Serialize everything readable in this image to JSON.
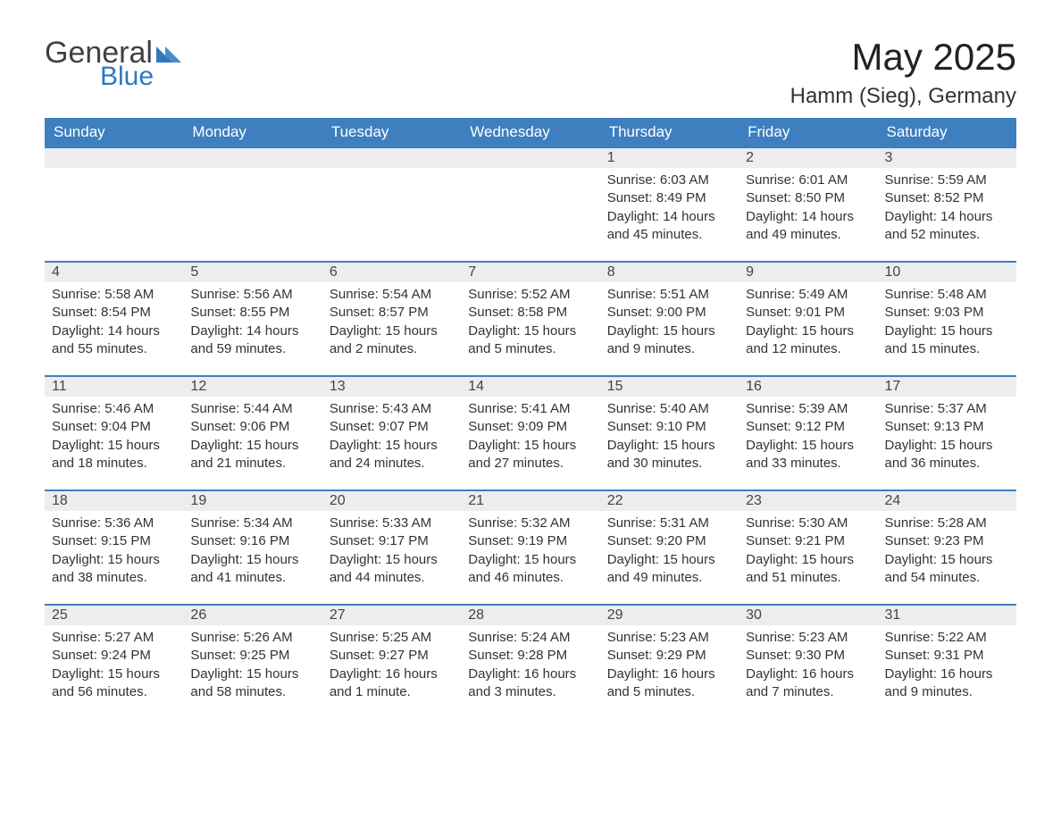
{
  "brand": {
    "general": "General",
    "blue": "Blue"
  },
  "title": "May 2025",
  "location": "Hamm (Sieg), Germany",
  "theme": {
    "header_bg": "#3d7fbf",
    "header_text": "#ffffff",
    "row_divider": "#3d7fbf",
    "daybar_bg": "#ededed",
    "page_bg": "#ffffff",
    "logo_gray": "#404040",
    "logo_blue": "#2f78bf"
  },
  "weekdays": [
    "Sunday",
    "Monday",
    "Tuesday",
    "Wednesday",
    "Thursday",
    "Friday",
    "Saturday"
  ],
  "leading_blanks": 4,
  "days": [
    {
      "n": 1,
      "sunrise": "6:03 AM",
      "sunset": "8:49 PM",
      "daylight": "14 hours and 45 minutes."
    },
    {
      "n": 2,
      "sunrise": "6:01 AM",
      "sunset": "8:50 PM",
      "daylight": "14 hours and 49 minutes."
    },
    {
      "n": 3,
      "sunrise": "5:59 AM",
      "sunset": "8:52 PM",
      "daylight": "14 hours and 52 minutes."
    },
    {
      "n": 4,
      "sunrise": "5:58 AM",
      "sunset": "8:54 PM",
      "daylight": "14 hours and 55 minutes."
    },
    {
      "n": 5,
      "sunrise": "5:56 AM",
      "sunset": "8:55 PM",
      "daylight": "14 hours and 59 minutes."
    },
    {
      "n": 6,
      "sunrise": "5:54 AM",
      "sunset": "8:57 PM",
      "daylight": "15 hours and 2 minutes."
    },
    {
      "n": 7,
      "sunrise": "5:52 AM",
      "sunset": "8:58 PM",
      "daylight": "15 hours and 5 minutes."
    },
    {
      "n": 8,
      "sunrise": "5:51 AM",
      "sunset": "9:00 PM",
      "daylight": "15 hours and 9 minutes."
    },
    {
      "n": 9,
      "sunrise": "5:49 AM",
      "sunset": "9:01 PM",
      "daylight": "15 hours and 12 minutes."
    },
    {
      "n": 10,
      "sunrise": "5:48 AM",
      "sunset": "9:03 PM",
      "daylight": "15 hours and 15 minutes."
    },
    {
      "n": 11,
      "sunrise": "5:46 AM",
      "sunset": "9:04 PM",
      "daylight": "15 hours and 18 minutes."
    },
    {
      "n": 12,
      "sunrise": "5:44 AM",
      "sunset": "9:06 PM",
      "daylight": "15 hours and 21 minutes."
    },
    {
      "n": 13,
      "sunrise": "5:43 AM",
      "sunset": "9:07 PM",
      "daylight": "15 hours and 24 minutes."
    },
    {
      "n": 14,
      "sunrise": "5:41 AM",
      "sunset": "9:09 PM",
      "daylight": "15 hours and 27 minutes."
    },
    {
      "n": 15,
      "sunrise": "5:40 AM",
      "sunset": "9:10 PM",
      "daylight": "15 hours and 30 minutes."
    },
    {
      "n": 16,
      "sunrise": "5:39 AM",
      "sunset": "9:12 PM",
      "daylight": "15 hours and 33 minutes."
    },
    {
      "n": 17,
      "sunrise": "5:37 AM",
      "sunset": "9:13 PM",
      "daylight": "15 hours and 36 minutes."
    },
    {
      "n": 18,
      "sunrise": "5:36 AM",
      "sunset": "9:15 PM",
      "daylight": "15 hours and 38 minutes."
    },
    {
      "n": 19,
      "sunrise": "5:34 AM",
      "sunset": "9:16 PM",
      "daylight": "15 hours and 41 minutes."
    },
    {
      "n": 20,
      "sunrise": "5:33 AM",
      "sunset": "9:17 PM",
      "daylight": "15 hours and 44 minutes."
    },
    {
      "n": 21,
      "sunrise": "5:32 AM",
      "sunset": "9:19 PM",
      "daylight": "15 hours and 46 minutes."
    },
    {
      "n": 22,
      "sunrise": "5:31 AM",
      "sunset": "9:20 PM",
      "daylight": "15 hours and 49 minutes."
    },
    {
      "n": 23,
      "sunrise": "5:30 AM",
      "sunset": "9:21 PM",
      "daylight": "15 hours and 51 minutes."
    },
    {
      "n": 24,
      "sunrise": "5:28 AM",
      "sunset": "9:23 PM",
      "daylight": "15 hours and 54 minutes."
    },
    {
      "n": 25,
      "sunrise": "5:27 AM",
      "sunset": "9:24 PM",
      "daylight": "15 hours and 56 minutes."
    },
    {
      "n": 26,
      "sunrise": "5:26 AM",
      "sunset": "9:25 PM",
      "daylight": "15 hours and 58 minutes."
    },
    {
      "n": 27,
      "sunrise": "5:25 AM",
      "sunset": "9:27 PM",
      "daylight": "16 hours and 1 minute."
    },
    {
      "n": 28,
      "sunrise": "5:24 AM",
      "sunset": "9:28 PM",
      "daylight": "16 hours and 3 minutes."
    },
    {
      "n": 29,
      "sunrise": "5:23 AM",
      "sunset": "9:29 PM",
      "daylight": "16 hours and 5 minutes."
    },
    {
      "n": 30,
      "sunrise": "5:23 AM",
      "sunset": "9:30 PM",
      "daylight": "16 hours and 7 minutes."
    },
    {
      "n": 31,
      "sunrise": "5:22 AM",
      "sunset": "9:31 PM",
      "daylight": "16 hours and 9 minutes."
    }
  ],
  "labels": {
    "sunrise": "Sunrise: ",
    "sunset": "Sunset: ",
    "daylight": "Daylight: "
  }
}
